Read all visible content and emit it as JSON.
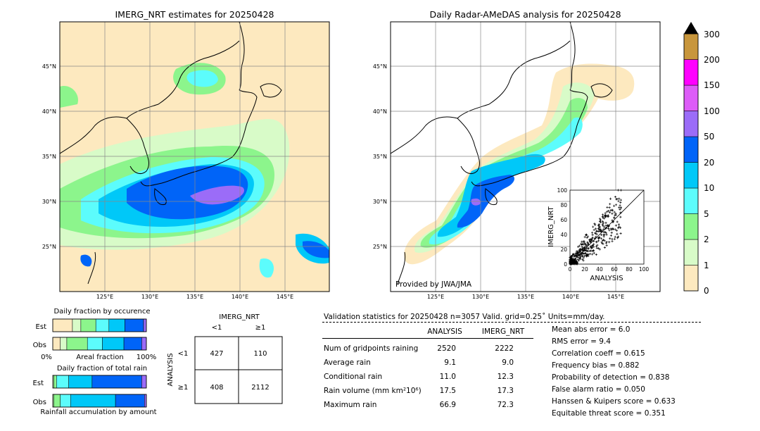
{
  "left_map": {
    "title": "IMERG_NRT estimates for 20250428",
    "lon_ticks": [
      "125°E",
      "130°E",
      "135°E",
      "140°E",
      "145°E"
    ],
    "lat_ticks": [
      "45°N",
      "40°N",
      "35°N",
      "30°N",
      "25°N"
    ]
  },
  "right_map": {
    "title": "Daily Radar-AMeDAS analysis for 20250428",
    "lon_ticks": [
      "125°E",
      "130°E",
      "135°E",
      "140°E",
      "145°E"
    ],
    "lat_ticks": [
      "45°N",
      "40°N",
      "35°N",
      "30°N",
      "25°N"
    ],
    "credit": "Provided by JWA/JMA"
  },
  "colorbar": {
    "levels": [
      "0",
      "1",
      "2",
      "5",
      "10",
      "20",
      "50",
      "100",
      "150",
      "200",
      "300"
    ],
    "colors": [
      "#fde9bf",
      "#d8fbc8",
      "#8cf58c",
      "#5cfcfc",
      "#00c8f8",
      "#0064f8",
      "#9b6cf8",
      "#dd5cf8",
      "#ff00ff",
      "#c8963c"
    ]
  },
  "scatter": {
    "xlabel": "ANALYSIS",
    "ylabel": "IMERG_NRT",
    "ticks": [
      "0",
      "20",
      "40",
      "60",
      "80",
      "100"
    ],
    "xlim": [
      0,
      100
    ],
    "ylim": [
      0,
      100
    ]
  },
  "occurrence": {
    "title": "Daily fraction by occurence",
    "rows": [
      "Est",
      "Obs"
    ],
    "xmin": "0%",
    "xmid": "Areal fraction",
    "xmax": "100%"
  },
  "accumulation": {
    "title": "Daily fraction of total rain",
    "rows": [
      "Est",
      "Obs"
    ],
    "footer": "Rainfall accumulation by amount"
  },
  "contingency": {
    "title": "IMERG_NRT",
    "col_labels": [
      "<1",
      "≥1"
    ],
    "row_labels": [
      "<1",
      "≥1"
    ],
    "side_label": "ANALYSIS",
    "cells": [
      [
        "427",
        "110"
      ],
      [
        "408",
        "2112"
      ]
    ]
  },
  "validation": {
    "header": "Validation statistics for 20250428  n=3057 Valid. grid=0.25˚ Units=mm/day.",
    "col1": "ANALYSIS",
    "col2": "IMERG_NRT",
    "rows": [
      {
        "label": "Num of gridpoints raining",
        "a": "2520",
        "b": "2222"
      },
      {
        "label": "Average rain",
        "a": "9.1",
        "b": "9.0"
      },
      {
        "label": "Conditional rain",
        "a": "11.0",
        "b": "12.3"
      },
      {
        "label": "Rain volume (mm km²10⁶)",
        "a": "17.5",
        "b": "17.3"
      },
      {
        "label": "Maximum rain",
        "a": "66.9",
        "b": "72.3"
      }
    ],
    "scores": [
      "Mean abs error =    6.0",
      "RMS error =    9.4",
      "Correlation coeff =  0.615",
      "Frequency bias =  0.882",
      "Probability of detection =  0.838",
      "False alarm ratio =  0.050",
      "Hanssen & Kuipers score =  0.633",
      "Equitable threat score =  0.351"
    ]
  },
  "chart_data": [
    {
      "type": "heatmap",
      "title": "IMERG_NRT estimates for 20250428",
      "x_ticks": [
        "125°E",
        "130°E",
        "135°E",
        "140°E",
        "145°E"
      ],
      "y_ticks": [
        "45°N",
        "40°N",
        "35°N",
        "30°N",
        "25°N"
      ]
    },
    {
      "type": "heatmap",
      "title": "Daily Radar-AMeDAS analysis for 20250428",
      "x_ticks": [
        "125°E",
        "130°E",
        "135°E",
        "140°E",
        "145°E"
      ],
      "y_ticks": [
        "45°N",
        "40°N",
        "35°N",
        "30°N",
        "25°N"
      ]
    },
    {
      "type": "scatter",
      "xlabel": "ANALYSIS",
      "ylabel": "IMERG_NRT",
      "xlim": [
        0,
        100
      ],
      "ylim": [
        0,
        100
      ]
    },
    {
      "type": "bar",
      "title": "Daily fraction by occurence",
      "categories": [
        "Est",
        "Obs"
      ],
      "series": [
        {
          "color": "#fde9bf",
          "values": [
            0.21,
            0.08
          ]
        },
        {
          "color": "#d8fbc8",
          "values": [
            0.09,
            0.07
          ]
        },
        {
          "color": "#8cf58c",
          "values": [
            0.16,
            0.22
          ]
        },
        {
          "color": "#5cfcfc",
          "values": [
            0.14,
            0.16
          ]
        },
        {
          "color": "#00c8f8",
          "values": [
            0.17,
            0.23
          ]
        },
        {
          "color": "#0064f8",
          "values": [
            0.2,
            0.19
          ]
        },
        {
          "color": "#9b6cf8",
          "values": [
            0.03,
            0.05
          ]
        }
      ]
    },
    {
      "type": "bar",
      "title": "Daily fraction of total rain",
      "categories": [
        "Est",
        "Obs"
      ],
      "series": [
        {
          "color": "#d8fbc8",
          "values": [
            0.01,
            0.01
          ]
        },
        {
          "color": "#8cf58c",
          "values": [
            0.03,
            0.07
          ]
        },
        {
          "color": "#5cfcfc",
          "values": [
            0.13,
            0.11
          ]
        },
        {
          "color": "#00c8f8",
          "values": [
            0.25,
            0.48
          ]
        },
        {
          "color": "#0064f8",
          "values": [
            0.53,
            0.31
          ]
        },
        {
          "color": "#9b6cf8",
          "values": [
            0.05,
            0.02
          ]
        }
      ]
    }
  ]
}
